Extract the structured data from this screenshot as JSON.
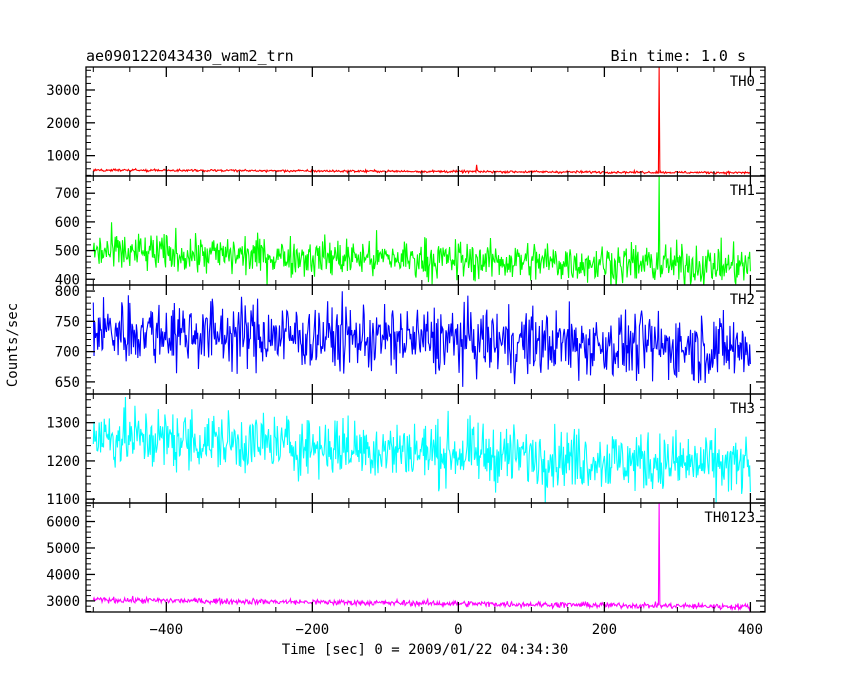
{
  "chart_data": {
    "type": "line",
    "title_left": "ae090122043430_wam2_trn",
    "title_right": "Bin time: 1.0 s",
    "xlabel": "Time [sec] 0 = 2009/01/22 04:34:30",
    "ylabel": "Counts/sec",
    "xlim": [
      -510,
      420
    ],
    "xticks": [
      -400,
      -200,
      0,
      200,
      400
    ],
    "xtick_labels": [
      "−400",
      "−200",
      "0",
      "200",
      "400"
    ],
    "x_range": [
      -500,
      400
    ],
    "bin_time": 1.0,
    "panels": [
      {
        "name": "TH0",
        "color": "#ff0000",
        "ylim": [
          380,
          3700
        ],
        "yticks": [
          1000,
          2000,
          3000
        ],
        "ytick_labels": [
          "1000",
          "2000",
          "3000"
        ],
        "baseline_start": 560,
        "baseline_end": 480,
        "noise": 18,
        "features": [
          {
            "x": 275,
            "y": 3700
          },
          {
            "x": 25,
            "y": 720
          }
        ]
      },
      {
        "name": "TH1",
        "color": "#00ff00",
        "ylim": [
          380,
          760
        ],
        "yticks": [
          400,
          500,
          600,
          700
        ],
        "ytick_labels": [
          "400",
          "500",
          "600",
          "700"
        ],
        "baseline_start": 495,
        "baseline_end": 445,
        "noise": 35,
        "features": [
          {
            "x": 275,
            "y": 760
          }
        ]
      },
      {
        "name": "TH2",
        "color": "#0000ff",
        "ylim": [
          630,
          810
        ],
        "yticks": [
          650,
          700,
          750,
          800
        ],
        "ytick_labels": [
          "650",
          "700",
          "750",
          "800"
        ],
        "baseline_start": 735,
        "baseline_end": 705,
        "noise": 28,
        "features": []
      },
      {
        "name": "TH3",
        "color": "#00ffff",
        "ylim": [
          1090,
          1375
        ],
        "yticks": [
          1100,
          1200,
          1300
        ],
        "ytick_labels": [
          "1100",
          "1200",
          "1300"
        ],
        "baseline_start": 1265,
        "baseline_end": 1185,
        "noise": 40,
        "features": []
      },
      {
        "name": "TH0123",
        "color": "#ff00ff",
        "ylim": [
          2580,
          6700
        ],
        "yticks": [
          3000,
          4000,
          5000,
          6000
        ],
        "ytick_labels": [
          "3000",
          "4000",
          "5000",
          "6000"
        ],
        "baseline_start": 3040,
        "baseline_end": 2780,
        "noise": 55,
        "features": [
          {
            "x": 275,
            "y": 6700
          }
        ]
      }
    ]
  }
}
